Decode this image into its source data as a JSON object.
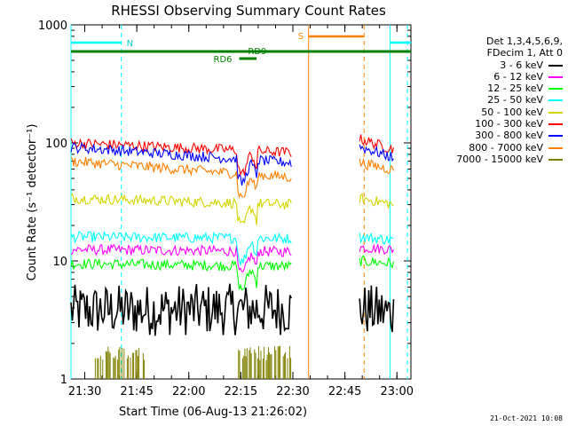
{
  "chart_data": {
    "type": "line",
    "title": "RHESSI Observing Summary Count Rates",
    "xlabel": "Start Time (06-Aug-13 21:26:02)",
    "ylabel": "Count Rate (s⁻¹ detector⁻¹)",
    "yscale": "log",
    "ylim": [
      1,
      1000
    ],
    "xlim_minutes": [
      0,
      98
    ],
    "x_ticks": [
      "21:30",
      "21:45",
      "22:00",
      "22:15",
      "22:30",
      "22:45",
      "23:00"
    ],
    "x_tick_minutes": [
      3.97,
      18.97,
      33.97,
      48.97,
      63.97,
      78.97,
      93.97
    ],
    "y_ticks": [
      "1",
      "10",
      "100",
      "1000"
    ],
    "y_tick_values": [
      1,
      10,
      100,
      1000
    ],
    "legend_header": [
      "Det 1,3,4,5,6,9,",
      "FDecim 1, Att 0"
    ],
    "legend_placement": "right",
    "timestamp": "21-Oct-2021 10:08",
    "annotations": {
      "night_label": "N",
      "saa_label": "S",
      "rd_labels": [
        "RD6",
        "RD9"
      ]
    },
    "event_lines_minutes": {
      "night_start": [
        0.0,
        92.0
      ],
      "night_end": [
        14.5,
        97.0
      ],
      "saa_start": 68.5,
      "saa_end": 84.5
    },
    "series": [
      {
        "name": "3 - 6 keV",
        "color": "#000000",
        "segments": [
          [
            0,
            63.5,
            3.8,
            3.9
          ],
          [
            83.2,
            93,
            3.9,
            3.6
          ]
        ]
      },
      {
        "name": "6 - 12 keV",
        "color": "#ff00ff",
        "segments": [
          [
            0,
            63.5,
            12.5,
            12.0
          ],
          [
            83.2,
            93,
            13,
            12.5
          ]
        ]
      },
      {
        "name": "12 - 25 keV",
        "color": "#00ff00",
        "segments": [
          [
            0,
            63.5,
            9.5,
            9.0
          ],
          [
            83.2,
            93,
            10,
            9.5
          ]
        ]
      },
      {
        "name": "25 - 50 keV",
        "color": "#00ffff",
        "segments": [
          [
            0,
            63.5,
            16,
            15.5
          ],
          [
            83.2,
            93,
            16,
            15
          ]
        ]
      },
      {
        "name": "50 - 100 keV",
        "color": "#d4d400",
        "segments": [
          [
            0,
            63.5,
            34,
            30
          ],
          [
            83.2,
            93,
            34,
            30
          ]
        ]
      },
      {
        "name": "100 - 300 keV",
        "color": "#ff0000",
        "segments": [
          [
            0,
            63.5,
            100,
            83
          ],
          [
            83.2,
            93,
            108,
            88
          ]
        ]
      },
      {
        "name": "300 - 800 keV",
        "color": "#0000ff",
        "segments": [
          [
            0,
            63.5,
            92,
            68
          ],
          [
            83.2,
            93,
            93,
            75
          ]
        ]
      },
      {
        "name": "800 - 7000 keV",
        "color": "#ff8000",
        "segments": [
          [
            0,
            63.5,
            70,
            51
          ],
          [
            83.2,
            93,
            68,
            59
          ]
        ]
      },
      {
        "name": "7000 - 15000 keV",
        "color": "#808000",
        "segments": [
          [
            7,
            21.5,
            1.6,
            1.6
          ],
          [
            48,
            63.5,
            1.6,
            1.6
          ]
        ]
      }
    ]
  }
}
